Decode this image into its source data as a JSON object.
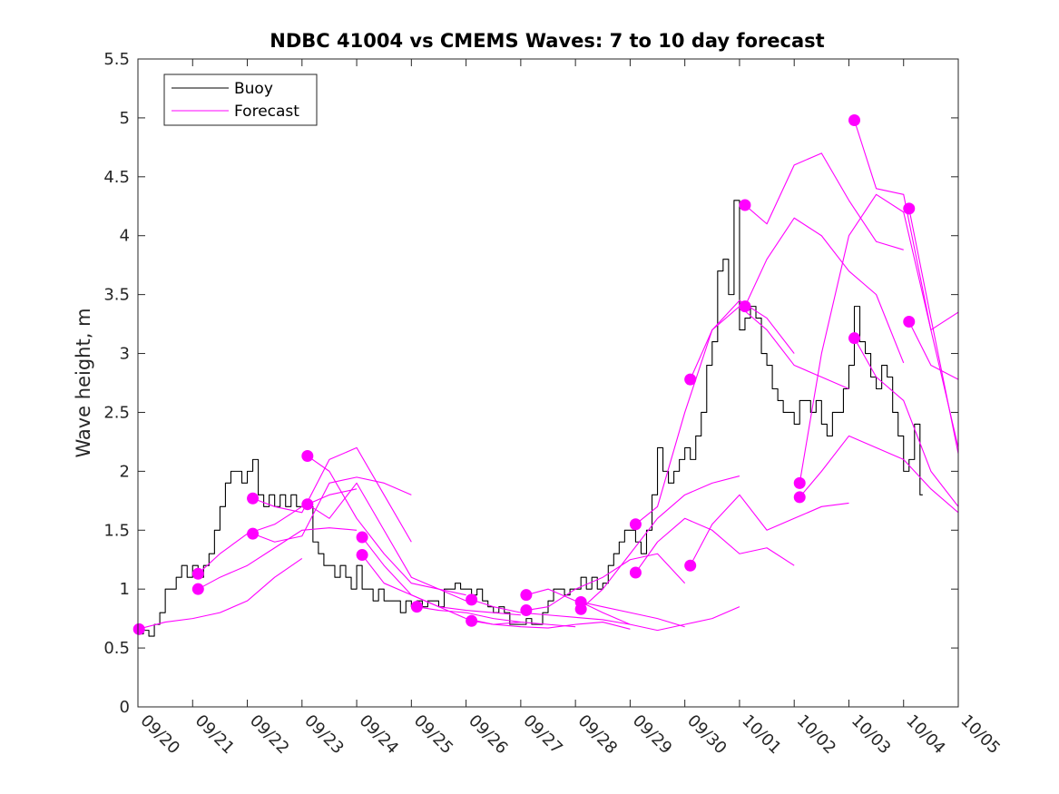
{
  "chart_data": {
    "type": "line",
    "title": "NDBC 41004 vs CMEMS Waves: 7 to 10 day forecast",
    "xlabel": "",
    "ylabel": "Wave height, m",
    "xlim": [
      0,
      15
    ],
    "ylim": [
      0,
      5.5
    ],
    "x_tick_values": [
      0,
      1,
      2,
      3,
      4,
      5,
      6,
      7,
      8,
      9,
      10,
      11,
      12,
      13,
      14,
      15
    ],
    "x_tick_labels": [
      "09/20",
      "09/21",
      "09/22",
      "09/23",
      "09/24",
      "09/25",
      "09/26",
      "09/27",
      "09/28",
      "09/29",
      "09/30",
      "10/01",
      "10/02",
      "10/03",
      "10/04",
      "10/05"
    ],
    "y_tick_values": [
      0,
      0.5,
      1,
      1.5,
      2,
      2.5,
      3,
      3.5,
      4,
      4.5,
      5,
      5.5
    ],
    "y_tick_labels": [
      "0",
      "0.5",
      "1",
      "1.5",
      "2",
      "2.5",
      "3",
      "3.5",
      "4",
      "4.5",
      "5",
      "5.5"
    ],
    "grid": false,
    "legend": {
      "position": "top-left",
      "entries": [
        {
          "label": "Buoy",
          "color": "#000000"
        },
        {
          "label": "Forecast",
          "color": "#ff00ff"
        }
      ]
    },
    "colors": {
      "buoy": "#000000",
      "forecast": "#ff00ff",
      "axes": "#262626"
    },
    "series": [
      {
        "name": "Buoy",
        "x": [
          0.0,
          0.1,
          0.2,
          0.3,
          0.4,
          0.5,
          0.6,
          0.7,
          0.8,
          0.9,
          1.0,
          1.1,
          1.2,
          1.3,
          1.4,
          1.5,
          1.6,
          1.7,
          1.8,
          1.9,
          2.0,
          2.1,
          2.2,
          2.3,
          2.4,
          2.5,
          2.6,
          2.7,
          2.8,
          2.9,
          3.0,
          3.1,
          3.2,
          3.3,
          3.4,
          3.5,
          3.6,
          3.7,
          3.8,
          3.9,
          4.0,
          4.1,
          4.2,
          4.3,
          4.4,
          4.5,
          4.6,
          4.7,
          4.8,
          4.9,
          5.0,
          5.1,
          5.2,
          5.3,
          5.4,
          5.5,
          5.6,
          5.7,
          5.8,
          5.9,
          6.0,
          6.1,
          6.2,
          6.3,
          6.4,
          6.5,
          6.6,
          6.7,
          6.8,
          6.9,
          7.0,
          7.1,
          7.2,
          7.3,
          7.4,
          7.5,
          7.6,
          7.7,
          7.8,
          7.9,
          8.0,
          8.1,
          8.2,
          8.3,
          8.4,
          8.5,
          8.6,
          8.7,
          8.8,
          8.9,
          9.0,
          9.1,
          9.2,
          9.3,
          9.4,
          9.5,
          9.6,
          9.7,
          9.8,
          9.9,
          10.0,
          10.1,
          10.2,
          10.3,
          10.4,
          10.5,
          10.6,
          10.7,
          10.8,
          10.9,
          11.0,
          11.1,
          11.2,
          11.3,
          11.4,
          11.5,
          11.6,
          11.7,
          11.8,
          11.9,
          12.0,
          12.1,
          12.2,
          12.3,
          12.4,
          12.5,
          12.6,
          12.7,
          12.8,
          12.9,
          13.0,
          13.1,
          13.2,
          13.3,
          13.4,
          13.5,
          13.6,
          13.7,
          13.8,
          13.9,
          14.0,
          14.1,
          14.2,
          14.3
        ],
        "values": [
          0.62,
          0.65,
          0.6,
          0.7,
          0.8,
          1.0,
          1.0,
          1.1,
          1.2,
          1.1,
          1.2,
          1.1,
          1.2,
          1.3,
          1.5,
          1.7,
          1.9,
          2.0,
          2.0,
          1.9,
          2.0,
          2.1,
          1.8,
          1.7,
          1.8,
          1.7,
          1.8,
          1.7,
          1.8,
          1.7,
          1.7,
          1.7,
          1.4,
          1.3,
          1.2,
          1.2,
          1.1,
          1.2,
          1.1,
          1.0,
          1.2,
          1.0,
          1.0,
          0.9,
          1.0,
          0.9,
          0.9,
          0.9,
          0.8,
          0.9,
          0.85,
          0.9,
          0.85,
          0.9,
          0.9,
          0.85,
          1.0,
          1.0,
          1.05,
          1.0,
          1.0,
          0.95,
          1.0,
          0.9,
          0.85,
          0.8,
          0.85,
          0.8,
          0.7,
          0.7,
          0.7,
          0.75,
          0.7,
          0.7,
          0.8,
          0.9,
          1.0,
          1.0,
          0.95,
          1.0,
          1.0,
          1.1,
          1.0,
          1.1,
          1.0,
          1.05,
          1.2,
          1.3,
          1.4,
          1.5,
          1.5,
          1.4,
          1.3,
          1.5,
          1.8,
          2.2,
          2.0,
          1.9,
          2.0,
          2.1,
          2.2,
          2.1,
          2.3,
          2.5,
          2.9,
          3.1,
          3.7,
          3.8,
          3.5,
          4.3,
          3.2,
          3.3,
          3.4,
          3.3,
          3.0,
          2.9,
          2.7,
          2.6,
          2.5,
          2.5,
          2.4,
          2.6,
          2.6,
          2.5,
          2.6,
          2.4,
          2.3,
          2.5,
          2.5,
          2.7,
          2.9,
          3.4,
          3.1,
          3.0,
          2.8,
          2.7,
          2.9,
          2.8,
          2.5,
          2.3,
          2.0,
          2.1,
          2.4,
          1.8
        ],
        "color": "#000000"
      },
      {
        "name": "Forecast 09/20",
        "x": [
          0.0,
          0.5,
          1.0,
          1.5,
          2.0,
          2.5,
          3.0
        ],
        "values": [
          0.66,
          0.72,
          0.75,
          0.8,
          0.9,
          1.1,
          1.26
        ],
        "color": "#ff00ff"
      },
      {
        "name": "Forecast 09/21a",
        "x": [
          1.1,
          1.5,
          2.0,
          2.5,
          3.0,
          3.5,
          4.0
        ],
        "values": [
          1.0,
          1.1,
          1.2,
          1.35,
          1.5,
          1.52,
          1.5
        ],
        "color": "#ff00ff"
      },
      {
        "name": "Forecast 09/21b",
        "x": [
          1.1,
          1.5,
          2.0,
          2.5,
          3.0,
          3.5,
          4.0
        ],
        "values": [
          1.13,
          1.3,
          1.47,
          1.55,
          1.7,
          1.8,
          1.85
        ],
        "color": "#ff00ff"
      },
      {
        "name": "Forecast 09/22a",
        "x": [
          2.1,
          2.5,
          3.0,
          3.5,
          4.0,
          4.5,
          5.0
        ],
        "values": [
          1.47,
          1.4,
          1.45,
          1.9,
          1.95,
          1.9,
          1.8
        ],
        "color": "#ff00ff"
      },
      {
        "name": "Forecast 09/22b",
        "x": [
          2.1,
          2.5,
          3.0,
          3.5,
          4.0,
          4.5,
          5.0
        ],
        "values": [
          1.77,
          1.7,
          1.65,
          2.1,
          2.2,
          1.8,
          1.4
        ],
        "color": "#ff00ff"
      },
      {
        "name": "Forecast 09/23a",
        "x": [
          3.1,
          3.5,
          4.0,
          4.5,
          5.0,
          5.5,
          6.0
        ],
        "values": [
          1.72,
          1.6,
          1.9,
          1.5,
          1.1,
          1.0,
          0.9
        ],
        "color": "#ff00ff"
      },
      {
        "name": "Forecast 09/23b",
        "x": [
          3.1,
          3.5,
          4.0,
          4.5,
          5.0,
          5.5,
          6.0
        ],
        "values": [
          2.13,
          2.0,
          1.6,
          1.3,
          1.05,
          1.0,
          0.95
        ],
        "color": "#ff00ff"
      },
      {
        "name": "Forecast 09/24a",
        "x": [
          4.1,
          4.5,
          5.0,
          5.5,
          6.0,
          6.5,
          7.0
        ],
        "values": [
          1.44,
          1.2,
          0.95,
          0.85,
          0.82,
          0.8,
          0.78
        ],
        "color": "#ff00ff"
      },
      {
        "name": "Forecast 09/24b",
        "x": [
          4.1,
          4.5,
          5.0,
          5.5,
          6.0,
          6.5,
          7.0
        ],
        "values": [
          1.29,
          1.05,
          0.95,
          0.85,
          0.75,
          0.7,
          0.72
        ],
        "color": "#ff00ff"
      },
      {
        "name": "Forecast 09/25",
        "x": [
          5.1,
          5.5,
          6.0,
          6.5,
          7.0,
          7.5,
          8.0
        ],
        "values": [
          0.85,
          0.82,
          0.8,
          0.75,
          0.72,
          0.7,
          0.68
        ],
        "color": "#ff00ff"
      },
      {
        "name": "Forecast 09/26a",
        "x": [
          6.1,
          6.5,
          7.0,
          7.5,
          8.0,
          8.5,
          9.0
        ],
        "values": [
          0.91,
          0.85,
          0.8,
          0.78,
          0.76,
          0.74,
          0.7
        ],
        "color": "#ff00ff"
      },
      {
        "name": "Forecast 09/26b",
        "x": [
          6.1,
          6.5,
          7.0,
          7.5,
          8.0,
          8.5,
          9.0
        ],
        "values": [
          0.73,
          0.7,
          0.68,
          0.67,
          0.7,
          0.72,
          0.66
        ],
        "color": "#ff00ff"
      },
      {
        "name": "Forecast 09/27a",
        "x": [
          7.1,
          7.5,
          8.0,
          8.5,
          9.0,
          9.5,
          10.0
        ],
        "values": [
          0.95,
          1.0,
          0.9,
          0.85,
          0.8,
          0.75,
          0.68
        ],
        "color": "#ff00ff"
      },
      {
        "name": "Forecast 09/27b",
        "x": [
          7.1,
          7.5,
          8.0,
          8.5,
          9.0,
          9.5,
          10.0
        ],
        "values": [
          0.82,
          0.85,
          1.0,
          1.1,
          1.25,
          1.3,
          1.05
        ],
        "color": "#ff00ff"
      },
      {
        "name": "Forecast 09/28a",
        "x": [
          8.1,
          8.5,
          9.0,
          9.5,
          10.0,
          10.5,
          11.0
        ],
        "values": [
          0.89,
          0.8,
          0.7,
          0.65,
          0.7,
          0.75,
          0.85
        ],
        "color": "#ff00ff"
      },
      {
        "name": "Forecast 09/28b",
        "x": [
          8.1,
          8.5,
          9.0,
          9.5,
          10.0,
          10.5,
          11.0
        ],
        "values": [
          0.83,
          1.0,
          1.3,
          1.6,
          1.8,
          1.9,
          1.96
        ],
        "color": "#ff00ff"
      },
      {
        "name": "Forecast 09/29a",
        "x": [
          9.1,
          9.5,
          10.0,
          10.5,
          11.0,
          11.5,
          12.0
        ],
        "values": [
          1.55,
          1.7,
          2.5,
          3.2,
          3.45,
          3.3,
          3.0
        ],
        "color": "#ff00ff"
      },
      {
        "name": "Forecast 09/29b",
        "x": [
          9.1,
          9.5,
          10.0,
          10.5,
          11.0,
          11.5,
          12.0
        ],
        "values": [
          1.14,
          1.4,
          1.6,
          1.5,
          1.3,
          1.35,
          1.2
        ],
        "color": "#ff00ff"
      },
      {
        "name": "Forecast 09/30a",
        "x": [
          10.1,
          10.5,
          11.0,
          11.5,
          12.0,
          12.5,
          13.0
        ],
        "values": [
          2.78,
          3.2,
          3.4,
          3.2,
          2.9,
          2.8,
          2.7
        ],
        "color": "#ff00ff"
      },
      {
        "name": "Forecast 09/30b",
        "x": [
          10.1,
          10.5,
          11.0,
          11.5,
          12.0,
          12.5,
          13.0
        ],
        "values": [
          1.2,
          1.55,
          1.8,
          1.5,
          1.6,
          1.7,
          1.73
        ],
        "color": "#ff00ff"
      },
      {
        "name": "Forecast 10/01a",
        "x": [
          11.1,
          11.5,
          12.0,
          12.5,
          13.0,
          13.5,
          14.0
        ],
        "values": [
          4.26,
          4.1,
          4.6,
          4.7,
          4.3,
          3.95,
          3.88
        ],
        "color": "#ff00ff"
      },
      {
        "name": "Forecast 10/01b",
        "x": [
          11.1,
          11.5,
          12.0,
          12.5,
          13.0,
          13.5,
          14.0
        ],
        "values": [
          3.4,
          3.8,
          4.15,
          4.0,
          3.7,
          3.5,
          2.92
        ],
        "color": "#ff00ff"
      },
      {
        "name": "Forecast 10/02a",
        "x": [
          12.1,
          12.5,
          13.0,
          13.5,
          14.0,
          14.5,
          15.0
        ],
        "values": [
          1.9,
          3.0,
          4.0,
          4.35,
          4.2,
          3.2,
          2.2
        ],
        "color": "#ff00ff"
      },
      {
        "name": "Forecast 10/02b",
        "x": [
          12.1,
          12.5,
          13.0,
          13.5,
          14.0,
          14.5,
          15.0
        ],
        "values": [
          1.78,
          2.0,
          2.3,
          2.2,
          2.1,
          1.85,
          1.65
        ],
        "color": "#ff00ff"
      },
      {
        "name": "Forecast 10/03a",
        "x": [
          13.1,
          13.5,
          14.0,
          14.5,
          15.0
        ],
        "values": [
          4.98,
          4.4,
          4.35,
          3.2,
          3.35
        ],
        "color": "#ff00ff"
      },
      {
        "name": "Forecast 10/03b",
        "x": [
          13.1,
          13.5,
          14.0,
          14.5,
          15.0
        ],
        "values": [
          3.13,
          2.8,
          2.6,
          2.0,
          1.7
        ],
        "color": "#ff00ff"
      },
      {
        "name": "Forecast 10/04a",
        "x": [
          14.1,
          14.5,
          15.0
        ],
        "values": [
          4.23,
          3.3,
          2.15
        ],
        "color": "#ff00ff"
      },
      {
        "name": "Forecast 10/04b",
        "x": [
          14.1,
          14.5,
          15.0
        ],
        "values": [
          3.27,
          2.9,
          2.78
        ],
        "color": "#ff00ff"
      }
    ],
    "markers": {
      "name": "Forecast start points",
      "color": "#ff00ff",
      "x": [
        0.02,
        1.1,
        1.1,
        2.1,
        2.1,
        3.1,
        3.1,
        4.1,
        4.1,
        5.1,
        6.1,
        6.1,
        7.1,
        7.1,
        8.1,
        8.1,
        9.1,
        9.1,
        10.1,
        10.1,
        11.1,
        11.1,
        12.1,
        12.1,
        13.1,
        13.1,
        14.1,
        14.1
      ],
      "values": [
        0.66,
        1.0,
        1.13,
        1.47,
        1.77,
        1.72,
        2.13,
        1.44,
        1.29,
        0.85,
        0.91,
        0.73,
        0.95,
        0.82,
        0.89,
        0.83,
        1.55,
        1.14,
        2.78,
        1.2,
        4.26,
        3.4,
        1.9,
        1.78,
        4.98,
        3.13,
        4.23,
        3.27
      ]
    }
  }
}
